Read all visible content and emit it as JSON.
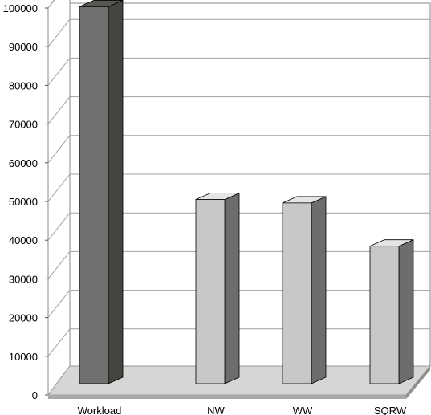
{
  "chart_data": {
    "type": "bar",
    "title": "",
    "xlabel": "",
    "ylabel": "",
    "categories": [
      "Workload",
      "NW",
      "WW",
      "SQRW"
    ],
    "values": [
      99500,
      48600,
      47700,
      36300
    ],
    "ylim": [
      0,
      100000
    ],
    "y_ticks": [
      0,
      10000,
      20000,
      30000,
      40000,
      50000,
      60000,
      70000,
      80000,
      90000,
      100000
    ],
    "grid": true,
    "legend": "none",
    "colors": {
      "highlight_bar": "#6f716e",
      "bar": "#c8c9c6",
      "grid": "#a0a0a0",
      "floor": "#d6d7d4"
    }
  }
}
